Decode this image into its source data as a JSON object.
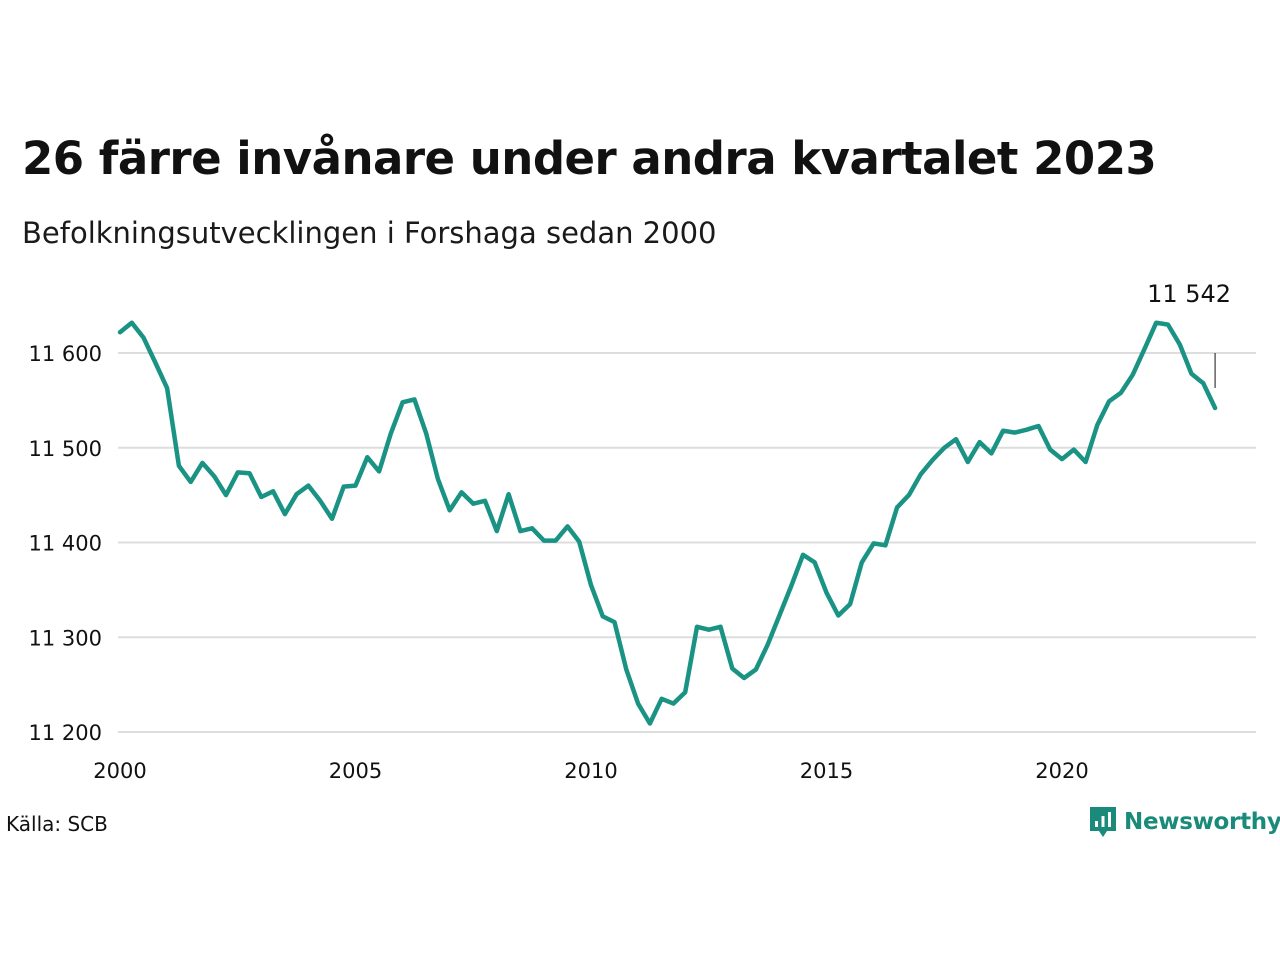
{
  "header": {
    "title": "26 färre invånare under andra kvartalet 2023",
    "subtitle": "Befolkningsutvecklingen i Forshaga sedan 2000"
  },
  "footer": {
    "source": "Källa: SCB",
    "brand": "Newsworthy",
    "brand_icon": "bar-chart-bubble-icon"
  },
  "colors": {
    "line": "#1a9384",
    "grid": "#dddddd",
    "brand": "#1a8a7a"
  },
  "chart_data": {
    "type": "line",
    "title": "26 färre invånare under andra kvartalet 2023",
    "subtitle": "Befolkningsutvecklingen i Forshaga sedan 2000",
    "xlabel": "",
    "ylabel": "",
    "x_ticks": [
      "2000",
      "2005",
      "2010",
      "2015",
      "2020"
    ],
    "y_ticks": [
      "11 200",
      "11 300",
      "11 400",
      "11 500",
      "11 600"
    ],
    "y_tick_values": [
      11200,
      11300,
      11400,
      11500,
      11600
    ],
    "xlim": [
      2000,
      2024.2
    ],
    "ylim": [
      11185,
      11655
    ],
    "grid": "horizontal",
    "annotation": {
      "label": "11 542",
      "x": 2023.25,
      "y": 11542
    },
    "series": [
      {
        "x": [
          2000.0,
          2000.25,
          2000.5,
          2000.75,
          2001.0,
          2001.25,
          2001.5,
          2001.75,
          2002.0,
          2002.25,
          2002.5,
          2002.75,
          2003.0,
          2003.25,
          2003.5,
          2003.75,
          2004.0,
          2004.25,
          2004.5,
          2004.75,
          2005.0,
          2005.25,
          2005.5,
          2005.75,
          2006.0,
          2006.25,
          2006.5,
          2006.75,
          2007.0,
          2007.25,
          2007.5,
          2007.75,
          2008.0,
          2008.25,
          2008.5,
          2008.75,
          2009.0,
          2009.25,
          2009.5,
          2009.75,
          2010.0,
          2010.25,
          2010.5,
          2010.75,
          2011.0,
          2011.25,
          2011.5,
          2011.75,
          2012.0,
          2012.25,
          2012.5,
          2012.75,
          2013.0,
          2013.25,
          2013.5,
          2013.75,
          2014.0,
          2014.25,
          2014.5,
          2014.75,
          2015.0,
          2015.25,
          2015.5,
          2015.75,
          2016.0,
          2016.25,
          2016.5,
          2016.75,
          2017.0,
          2017.25,
          2017.5,
          2017.75,
          2018.0,
          2018.25,
          2018.5,
          2018.75,
          2019.0,
          2019.25,
          2019.5,
          2019.75,
          2020.0,
          2020.25,
          2020.5,
          2020.75,
          2021.0,
          2021.25,
          2021.5,
          2021.75,
          2022.0,
          2022.25,
          2022.5,
          2022.75,
          2023.0,
          2023.25
        ],
        "values": [
          11622,
          11632,
          11616,
          11590,
          11563,
          11481,
          11464,
          11484,
          11470,
          11450,
          11474,
          11473,
          11448,
          11454,
          11430,
          11451,
          11460,
          11444,
          11425,
          11459,
          11460,
          11490,
          11475,
          11515,
          11548,
          11551,
          11515,
          11467,
          11434,
          11453,
          11441,
          11444,
          11412,
          11451,
          11412,
          11415,
          11402,
          11402,
          11417,
          11401,
          11355,
          11322,
          11316,
          11266,
          11230,
          11209,
          11235,
          11230,
          11242,
          11311,
          11308,
          11311,
          11267,
          11257,
          11266,
          11292,
          11323,
          11354,
          11387,
          11379,
          11347,
          11323,
          11335,
          11379,
          11399,
          11397,
          11437,
          11450,
          11472,
          11487,
          11500,
          11509,
          11485,
          11506,
          11494,
          11518,
          11516,
          11519,
          11523,
          11498,
          11488,
          11498,
          11485,
          11524,
          11549,
          11558,
          11577,
          11604,
          11632,
          11630,
          11609,
          11578,
          11568,
          11542
        ]
      }
    ]
  }
}
